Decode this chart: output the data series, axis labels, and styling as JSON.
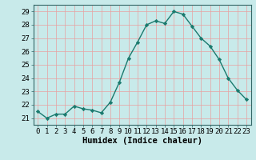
{
  "x": [
    0,
    1,
    2,
    3,
    4,
    5,
    6,
    7,
    8,
    9,
    10,
    11,
    12,
    13,
    14,
    15,
    16,
    17,
    18,
    19,
    20,
    21,
    22,
    23
  ],
  "y": [
    21.5,
    21.0,
    21.3,
    21.3,
    21.9,
    21.7,
    21.6,
    21.4,
    22.2,
    23.7,
    25.5,
    26.7,
    28.0,
    28.3,
    28.1,
    29.0,
    28.8,
    27.9,
    27.0,
    26.4,
    25.4,
    24.0,
    23.1,
    22.4
  ],
  "line_color": "#1a7a6e",
  "marker": "D",
  "markersize": 2.2,
  "bg_color": "#c8eaea",
  "grid_color": "#e8a0a0",
  "xlabel": "Humidex (Indice chaleur)",
  "xlim": [
    -0.5,
    23.5
  ],
  "ylim": [
    20.5,
    29.5
  ],
  "yticks": [
    21,
    22,
    23,
    24,
    25,
    26,
    27,
    28,
    29
  ],
  "xtick_labels": [
    "0",
    "1",
    "2",
    "3",
    "4",
    "5",
    "6",
    "7",
    "8",
    "9",
    "10",
    "11",
    "12",
    "13",
    "14",
    "15",
    "16",
    "17",
    "18",
    "19",
    "20",
    "21",
    "22",
    "23"
  ],
  "xlabel_fontsize": 7.5,
  "tick_fontsize": 6.5
}
